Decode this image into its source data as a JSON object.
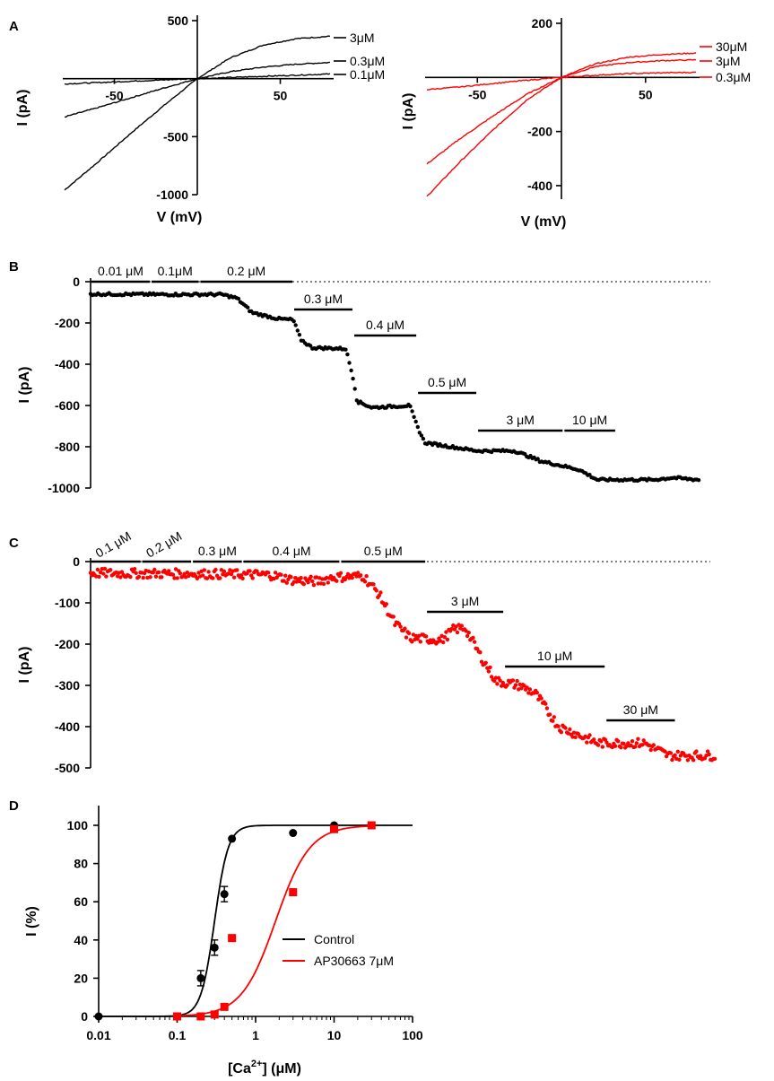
{
  "panels": {
    "A": "A",
    "B": "B",
    "C": "C",
    "D": "D"
  },
  "chart_data": [
    {
      "id": "A-left",
      "type": "line",
      "xlabel": "V (mV)",
      "ylabel": "I (pA)",
      "xlim": [
        -80,
        80
      ],
      "ylim": [
        -1000,
        500
      ],
      "xticks": [
        -50,
        50
      ],
      "yticks": [
        500,
        -500,
        -1000
      ],
      "color": "#000000",
      "series": [
        {
          "name": "3μM",
          "x": [
            -80,
            -60,
            -40,
            -20,
            0,
            20,
            40,
            60,
            80
          ],
          "values": [
            -960,
            -720,
            -470,
            -230,
            0,
            180,
            290,
            345,
            365
          ]
        },
        {
          "name": "0.3μM",
          "x": [
            -80,
            -60,
            -40,
            -20,
            0,
            20,
            40,
            60,
            80
          ],
          "values": [
            -330,
            -250,
            -165,
            -80,
            0,
            60,
            100,
            125,
            140
          ]
        },
        {
          "name": "0.1μM",
          "x": [
            -80,
            -60,
            -40,
            -20,
            0,
            20,
            40,
            60,
            80
          ],
          "values": [
            -45,
            -34,
            -22,
            -11,
            0,
            10,
            20,
            30,
            40
          ]
        }
      ]
    },
    {
      "id": "A-right",
      "type": "line",
      "xlabel": "V (mV)",
      "ylabel": "I (pA)",
      "xlim": [
        -80,
        80
      ],
      "ylim": [
        -450,
        200
      ],
      "xticks": [
        -50,
        50
      ],
      "yticks": [
        200,
        -200,
        -400
      ],
      "color": "#ff0000",
      "series": [
        {
          "name": "30μM",
          "x": [
            -80,
            -60,
            -40,
            -20,
            0,
            20,
            40,
            60,
            80
          ],
          "values": [
            -440,
            -310,
            -190,
            -80,
            0,
            50,
            75,
            85,
            90
          ]
        },
        {
          "name": "3μM",
          "x": [
            -80,
            -60,
            -40,
            -20,
            0,
            20,
            40,
            60,
            80
          ],
          "values": [
            -320,
            -225,
            -140,
            -60,
            0,
            40,
            55,
            62,
            65
          ]
        },
        {
          "name": "0.3μM",
          "x": [
            -80,
            -60,
            -40,
            -20,
            0,
            20,
            40,
            60,
            80
          ],
          "values": [
            -45,
            -35,
            -22,
            -10,
            0,
            8,
            14,
            17,
            19
          ]
        }
      ]
    },
    {
      "id": "B",
      "type": "scatter",
      "ylabel": "I (pA)",
      "ylim": [
        -1000,
        0
      ],
      "yticks": [
        0,
        -200,
        -400,
        -600,
        -800,
        -1000
      ],
      "color": "#000000",
      "trace": [
        [
          0,
          -60
        ],
        [
          0.2,
          -62
        ],
        [
          0.35,
          -62
        ],
        [
          0.39,
          -80
        ],
        [
          0.43,
          -150
        ],
        [
          0.5,
          -180
        ],
        [
          0.54,
          -185
        ],
        [
          0.56,
          -280
        ],
        [
          0.59,
          -320
        ],
        [
          0.68,
          -325
        ],
        [
          0.7,
          -470
        ],
        [
          0.71,
          -580
        ],
        [
          0.75,
          -610
        ],
        [
          0.85,
          -600
        ],
        [
          0.87,
          -700
        ],
        [
          0.89,
          -780
        ],
        [
          1.03,
          -820
        ],
        [
          1.13,
          -820
        ],
        [
          1.2,
          -870
        ],
        [
          1.3,
          -910
        ],
        [
          1.35,
          -960
        ],
        [
          1.5,
          -960
        ],
        [
          1.55,
          -950
        ],
        [
          1.62,
          -960
        ]
      ],
      "segments": [
        {
          "label": "0.01 μM",
          "x0": 0.0,
          "x1": 0.16,
          "row": 0
        },
        {
          "label": "0.1μM",
          "x0": 0.16,
          "x1": 0.29,
          "row": 0
        },
        {
          "label": "0.2 μM",
          "x0": 0.29,
          "x1": 0.54,
          "row": 0
        },
        {
          "label": "0.3 μM",
          "x0": 0.54,
          "x1": 0.7,
          "row": 1
        },
        {
          "label": "0.4 μM",
          "x0": 0.7,
          "x1": 0.87,
          "row": 2
        },
        {
          "label": "0.5 μM",
          "x0": 0.87,
          "x1": 1.03,
          "row": 3
        },
        {
          "label": "3 μM",
          "x0": 1.03,
          "x1": 1.26,
          "row": 4
        },
        {
          "label": "10 μM",
          "x0": 1.26,
          "x1": 1.4,
          "row": 4
        }
      ]
    },
    {
      "id": "C",
      "type": "scatter",
      "ylabel": "I (pA)",
      "ylim": [
        -500,
        0
      ],
      "yticks": [
        0,
        -100,
        -200,
        -300,
        -400,
        -500
      ],
      "color": "#ff0000",
      "trace": [
        [
          0,
          -28
        ],
        [
          0.3,
          -30
        ],
        [
          0.46,
          -32
        ],
        [
          0.52,
          -45
        ],
        [
          0.58,
          -48
        ],
        [
          0.62,
          -38
        ],
        [
          0.7,
          -35
        ],
        [
          0.74,
          -80
        ],
        [
          0.78,
          -150
        ],
        [
          0.82,
          -185
        ],
        [
          0.9,
          -190
        ],
        [
          0.93,
          -165
        ],
        [
          0.96,
          -160
        ],
        [
          1.0,
          -230
        ],
        [
          1.04,
          -290
        ],
        [
          1.1,
          -300
        ],
        [
          1.14,
          -320
        ],
        [
          1.2,
          -400
        ],
        [
          1.3,
          -440
        ],
        [
          1.42,
          -440
        ],
        [
          1.48,
          -470
        ],
        [
          1.6,
          -470
        ]
      ],
      "segments": [
        {
          "label": "0.1 μM",
          "x0": 0.0,
          "x1": 0.13,
          "row": 0,
          "rot": true
        },
        {
          "label": "0.2 μM",
          "x0": 0.13,
          "x1": 0.26,
          "row": 0,
          "rot": true
        },
        {
          "label": "0.3 μM",
          "x0": 0.26,
          "x1": 0.39,
          "row": 0
        },
        {
          "label": "0.4 μM",
          "x0": 0.39,
          "x1": 0.64,
          "row": 0
        },
        {
          "label": "0.5 μM",
          "x0": 0.64,
          "x1": 0.86,
          "row": 0
        },
        {
          "label": "3 μM",
          "x0": 0.86,
          "x1": 1.06,
          "row": 1
        },
        {
          "label": "10 μM",
          "x0": 1.06,
          "x1": 1.32,
          "row": 2
        },
        {
          "label": "30 μM",
          "x0": 1.32,
          "x1": 1.5,
          "row": 3
        }
      ]
    },
    {
      "id": "D",
      "type": "scatter",
      "xlabel": "[Ca2+] (μM)",
      "xlabel_main": "[Ca",
      "xlabel_sup": "2+",
      "xlabel_tail": "] (μM)",
      "ylabel": "I (%)",
      "xscale": "log",
      "xlim": [
        0.01,
        100
      ],
      "ylim": [
        0,
        100
      ],
      "xticks": [
        "0.01",
        "0.1",
        "1",
        "10",
        "100"
      ],
      "yticks": [
        0,
        20,
        40,
        60,
        80,
        100
      ],
      "legend": "center-right",
      "series": [
        {
          "name": "Control",
          "color": "#000000",
          "marker": "circle",
          "x": [
            0.01,
            0.2,
            0.3,
            0.4,
            0.5,
            3,
            10
          ],
          "values": [
            0,
            20,
            36,
            64,
            93,
            96,
            100
          ],
          "err": [
            0,
            4,
            4,
            4,
            1,
            1,
            1
          ],
          "fit": {
            "ec50": 0.3,
            "hill": 5
          }
        },
        {
          "name": "AP30663 7μM",
          "color": "#ff0000",
          "marker": "square",
          "x": [
            0.1,
            0.2,
            0.3,
            0.4,
            0.5,
            3,
            10,
            30
          ],
          "values": [
            0,
            0,
            1,
            5,
            41,
            65,
            98,
            100
          ],
          "fit": {
            "ec50": 1.8,
            "hill": 2
          }
        }
      ]
    }
  ]
}
